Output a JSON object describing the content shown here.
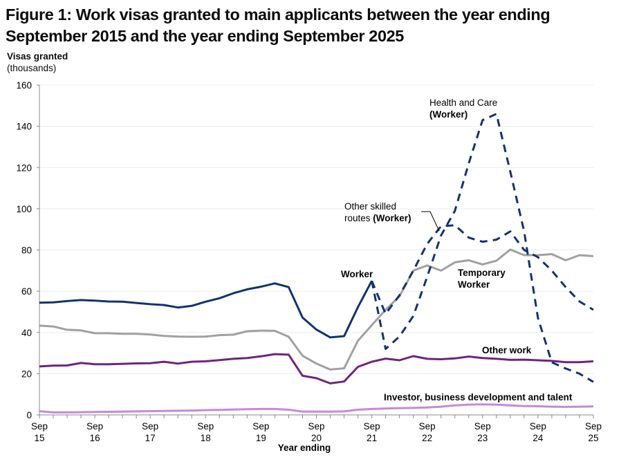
{
  "title": "Figure 1: Work visas granted to main applicants between the year ending September 2015 and the year ending September 2025",
  "chart_data": {
    "type": "line",
    "title": "Figure 1: Work visas granted to main applicants between the year ending September 2015 and the year ending September 2025",
    "ylabel": "Visas granted",
    "ylabel_unit": "(thousands)",
    "xlabel": "Year ending",
    "ylim": [
      0,
      160
    ],
    "yticks": [
      "0",
      "20",
      "40",
      "60",
      "80",
      "100",
      "120",
      "140",
      "160"
    ],
    "ytick_values": [
      0,
      20,
      40,
      60,
      80,
      100,
      120,
      140,
      160
    ],
    "grid": true,
    "x_frequency": "quarterly",
    "x_count": 41,
    "xtick_labels": [
      {
        "line1": "Sep",
        "line2": "15"
      },
      {
        "line1": "Sep",
        "line2": "16"
      },
      {
        "line1": "Sep",
        "line2": "17"
      },
      {
        "line1": "Sep",
        "line2": "18"
      },
      {
        "line1": "Sep",
        "line2": "19"
      },
      {
        "line1": "Sep",
        "line2": "20"
      },
      {
        "line1": "Sep",
        "line2": "21"
      },
      {
        "line1": "Sep",
        "line2": "22"
      },
      {
        "line1": "Sep",
        "line2": "23"
      },
      {
        "line1": "Sep",
        "line2": "24"
      },
      {
        "line1": "Sep",
        "line2": "25"
      }
    ],
    "series": [
      {
        "name": "Worker",
        "label": "Worker",
        "color": "#12326e",
        "dash": false,
        "start_index": 0,
        "values": [
          54.4,
          54.6,
          55.2,
          55.7,
          55.4,
          55.0,
          54.9,
          54.3,
          53.7,
          53.3,
          52.1,
          52.9,
          54.9,
          56.6,
          59.0,
          60.9,
          62.2,
          63.8,
          62.0,
          47.2,
          41.4,
          37.6,
          38.2,
          52.3,
          65.0
        ]
      },
      {
        "name": "Temporary Worker",
        "label": "Temporary Worker",
        "color": "#a0a0a2",
        "dash": false,
        "start_index": 0,
        "values": [
          43.3,
          42.9,
          41.3,
          41.0,
          39.6,
          39.6,
          39.3,
          39.3,
          39.0,
          38.3,
          38.0,
          37.9,
          38.0,
          38.7,
          38.9,
          40.6,
          40.9,
          40.8,
          37.9,
          28.7,
          24.9,
          22.0,
          22.6,
          36.0,
          43.5,
          51.0,
          57.5,
          70.0,
          72.5,
          70.0,
          74.0,
          75.0,
          73.0,
          74.8,
          80.2,
          77.5,
          77.5,
          78.0,
          75.0,
          77.5,
          77.0
        ]
      },
      {
        "name": "Other work",
        "label": "Other work",
        "color": "#6e2380",
        "dash": false,
        "start_index": 0,
        "values": [
          23.5,
          23.9,
          24.0,
          25.2,
          24.6,
          24.6,
          24.8,
          25.0,
          25.1,
          25.8,
          24.9,
          25.8,
          26.0,
          26.6,
          27.2,
          27.6,
          28.4,
          29.5,
          29.2,
          19.0,
          17.8,
          15.3,
          16.2,
          23.3,
          25.8,
          27.3,
          26.5,
          28.5,
          27.2,
          27.0,
          27.4,
          28.3,
          27.6,
          27.2,
          26.7,
          26.8,
          26.5,
          26.2,
          25.6,
          25.6,
          26.0
        ]
      },
      {
        "name": "Investor, business development and talent",
        "label": "Investor, business development and talent",
        "color": "#c38ad6",
        "dash": false,
        "start_index": 0,
        "values": [
          1.8,
          1.2,
          1.2,
          1.3,
          1.4,
          1.5,
          1.6,
          1.7,
          1.8,
          1.9,
          2.0,
          2.1,
          2.3,
          2.4,
          2.6,
          2.8,
          2.9,
          2.9,
          2.5,
          1.6,
          1.6,
          1.6,
          1.7,
          2.5,
          2.9,
          3.1,
          3.3,
          3.4,
          3.6,
          4.0,
          4.6,
          5.0,
          5.1,
          5.0,
          4.6,
          4.3,
          4.2,
          4.0,
          3.9,
          4.0,
          4.1
        ]
      },
      {
        "name": "Health and Care (Worker)",
        "label_line1": "Health and Care",
        "label_line2": "(Worker)",
        "color": "#12326e",
        "dash": true,
        "start_index": 24,
        "values": [
          65.0,
          32.0,
          38.0,
          48.0,
          67.0,
          87.0,
          99.0,
          122.0,
          143.0,
          146.0,
          118.0,
          89.0,
          47.0,
          25.5,
          22.5,
          20.0,
          16.0
        ]
      },
      {
        "name": "Other skilled routes (Worker)",
        "label_line1": "Other skilled",
        "label_line2a": "routes ",
        "label_line2b": "(Worker)",
        "color": "#12326e",
        "dash": true,
        "start_index": 24,
        "values": [
          65.0,
          49.0,
          58.0,
          70.0,
          83.0,
          91.5,
          92.0,
          86.0,
          84.0,
          85.0,
          89.0,
          80.0,
          76.5,
          70.0,
          62.0,
          55.0,
          51.0
        ]
      }
    ]
  }
}
